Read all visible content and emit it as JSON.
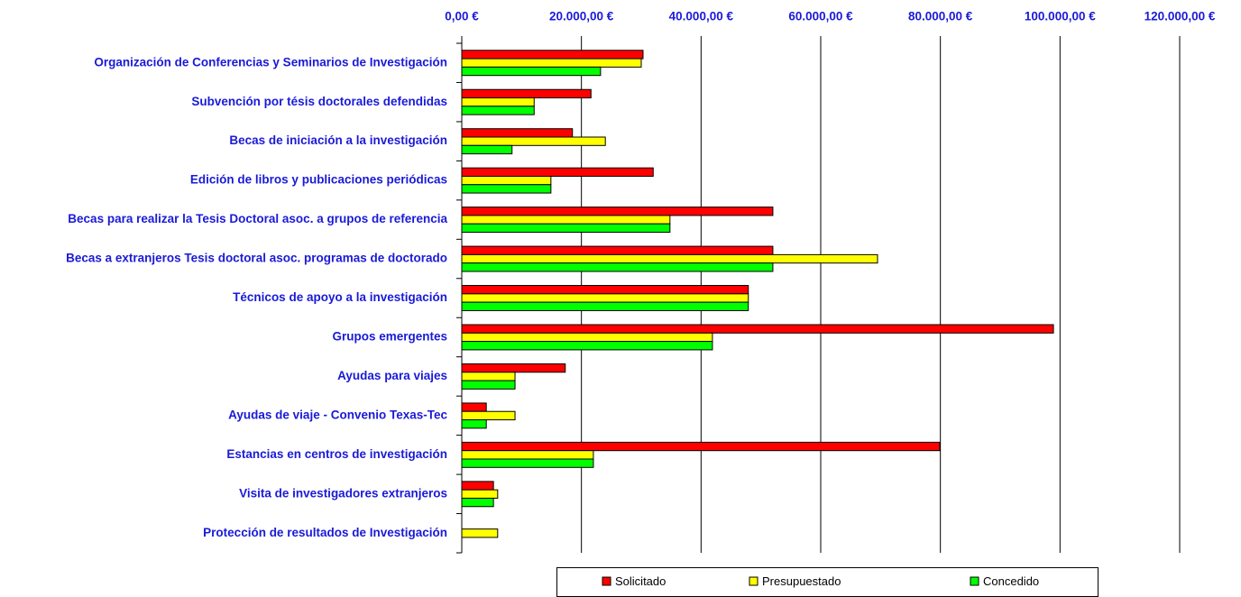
{
  "chart_data": {
    "type": "bar",
    "orientation": "horizontal",
    "categories": [
      "Organización de Conferencias y Seminarios de Investigación",
      "Subvención por tésis doctorales defendidas",
      "Becas de iniciación a la investigación",
      "Edición de libros y publicaciones periódicas",
      "Becas para realizar la Tesis Doctoral asoc. a grupos de referencia",
      "Becas a extranjeros Tesis doctoral asoc. programas de doctorado",
      "Técnicos de apoyo a la investigación",
      "Grupos emergentes",
      "Ayudas para viajes",
      "Ayudas de viaje - Convenio Texas-Tec",
      "Estancias en centros de investigación",
      "Visita de investigadores extranjeros",
      "Protección de resultados de Investigación"
    ],
    "series": [
      {
        "name": "Solicitado",
        "color": "#ff0000",
        "values": [
          30300,
          21600,
          18500,
          32000,
          52000,
          52000,
          47900,
          98900,
          17300,
          4100,
          79900,
          5300,
          0
        ]
      },
      {
        "name": "Presupuestado",
        "color": "#ffff00",
        "values": [
          30000,
          12100,
          24000,
          14900,
          34800,
          69500,
          47900,
          41900,
          8900,
          8900,
          22000,
          6000,
          6000
        ]
      },
      {
        "name": "Concedido",
        "color": "#00ff00",
        "values": [
          23200,
          12100,
          8400,
          14900,
          34800,
          52000,
          47900,
          41900,
          8900,
          4100,
          22000,
          5300,
          0
        ]
      }
    ],
    "xlim": [
      0,
      120000
    ],
    "xticks": [
      {
        "value": 0,
        "label": "0,00 €"
      },
      {
        "value": 20000,
        "label": "20.000,00 €"
      },
      {
        "value": 40000,
        "label": "40.000,00 €"
      },
      {
        "value": 60000,
        "label": "60.000,00 €"
      },
      {
        "value": 80000,
        "label": "80.000,00 €"
      },
      {
        "value": 100000,
        "label": "100.000,00 €"
      },
      {
        "value": 120000,
        "label": "120.000,00 €"
      }
    ],
    "grid": true,
    "legend": "bottom"
  }
}
